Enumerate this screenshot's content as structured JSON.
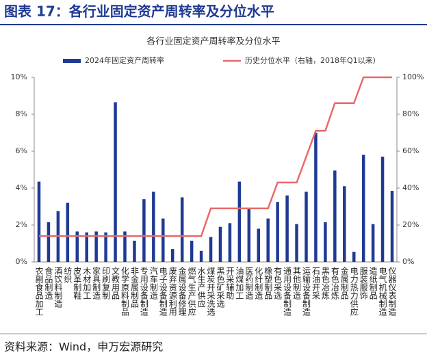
{
  "header": {
    "title": "图表 17：各行业固定资产周转率及分位水平"
  },
  "source": "资料来源：Wind，申万宏源研究",
  "chart_data": {
    "type": "bar",
    "title": "各行业固定资产周转率及分位水平",
    "categories": [
      "农副食品加工",
      "食品制造",
      "酒饮料制造",
      "纺织",
      "皮革制鞋",
      "木材加工",
      "家具制造",
      "印刷复制",
      "文教用品",
      "化学原料制品",
      "非金属制品",
      "专用设备制造",
      "汽车制造",
      "电子设备制造",
      "废弃资源利用",
      "金属设备修理",
      "燃气生产供应",
      "水生产供应",
      "煤炭开采洗选",
      "黑色矿采选",
      "开采辅助",
      "油煤加工",
      "医药制造",
      "化纤制造",
      "橡塑制品",
      "有色采选",
      "通用设备制造",
      "其他制造",
      "运输设备制造",
      "石油开采",
      "黑色冶炼",
      "有色冶炼",
      "金属制品",
      "电力热力供应",
      "服装服饰",
      "造纸制品",
      "电气机械制造",
      "仪器仪表制造"
    ],
    "series": [
      {
        "name": "2024年固定资产周转率",
        "type": "bar",
        "axis": "y",
        "color": "#1f3a93",
        "values": [
          4.35,
          2.15,
          2.75,
          3.2,
          1.65,
          1.6,
          1.65,
          1.6,
          8.65,
          1.65,
          1.15,
          3.4,
          3.8,
          2.35,
          0.7,
          3.5,
          1.15,
          0.6,
          1.35,
          1.9,
          2.1,
          4.35,
          2.85,
          1.8,
          2.35,
          3.25,
          3.6,
          2.05,
          3.8,
          7.0,
          2.15,
          4.95,
          4.1,
          0.55,
          5.8,
          2.05,
          5.7,
          3.85
        ]
      },
      {
        "name": "历史分位水平（右轴，2018年Q1以来）",
        "type": "line",
        "axis": "y2",
        "color": "#e8696b",
        "values": [
          14,
          14,
          14,
          14,
          14,
          14,
          14,
          14,
          14,
          14,
          14,
          14,
          14,
          14,
          14,
          14,
          14,
          14,
          29,
          29,
          29,
          29,
          29,
          29,
          29,
          43,
          43,
          43,
          57,
          71,
          71,
          86,
          86,
          86,
          100,
          100,
          100,
          100
        ]
      }
    ],
    "ylim": [
      0,
      10
    ],
    "yticks": [
      {
        "value": 0,
        "label": "0%"
      },
      {
        "value": 2,
        "label": "2%"
      },
      {
        "value": 4,
        "label": "4%"
      },
      {
        "value": 6,
        "label": "6%"
      },
      {
        "value": 8,
        "label": "8%"
      },
      {
        "value": 10,
        "label": "10%"
      }
    ],
    "y2lim": [
      0,
      100
    ],
    "y2ticks": [
      {
        "value": 0,
        "label": "0%"
      },
      {
        "value": 20,
        "label": "20%"
      },
      {
        "value": 40,
        "label": "40%"
      },
      {
        "value": 60,
        "label": "60%"
      },
      {
        "value": 80,
        "label": "80%"
      },
      {
        "value": 100,
        "label": "100%"
      }
    ],
    "grid": false
  }
}
